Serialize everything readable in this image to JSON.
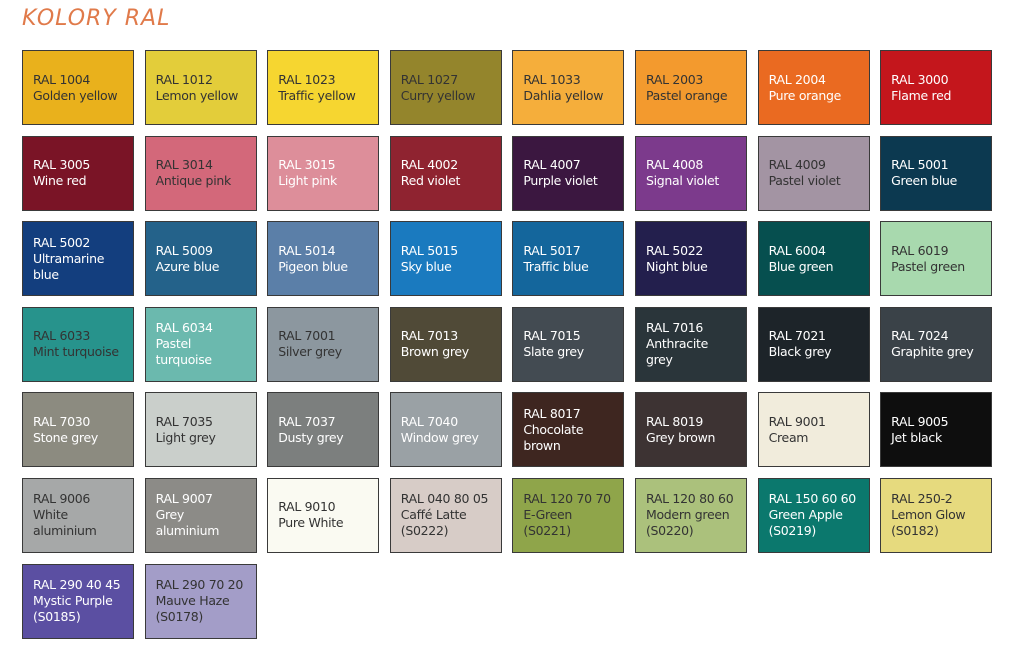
{
  "title": "KOLORY RAL",
  "swatches": [
    {
      "code": "RAL 1004",
      "name": "Golden yellow",
      "color": "#E9B11C",
      "text": "#333"
    },
    {
      "code": "RAL 1012",
      "name": "Lemon yellow",
      "color": "#E3CD3A",
      "text": "#333"
    },
    {
      "code": "RAL 1023",
      "name": "Traffic yellow",
      "color": "#F6D630",
      "text": "#333"
    },
    {
      "code": "RAL 1027",
      "name": "Curry yellow",
      "color": "#94852C",
      "text": "#333"
    },
    {
      "code": "RAL 1033",
      "name": "Dahlia yellow",
      "color": "#F5AE3B",
      "text": "#333"
    },
    {
      "code": "RAL 2003",
      "name": "Pastel orange",
      "color": "#F39A2E",
      "text": "#333"
    },
    {
      "code": "RAL 2004",
      "name": "Pure orange",
      "color": "#EA6A21",
      "text": "#fff"
    },
    {
      "code": "RAL 3000",
      "name": "Flame red",
      "color": "#C4161C",
      "text": "#fff"
    },
    {
      "code": "RAL 3005",
      "name": "Wine red",
      "color": "#7A1426",
      "text": "#fff"
    },
    {
      "code": "RAL 3014",
      "name": "Antique pink",
      "color": "#D3687A",
      "text": "#333"
    },
    {
      "code": "RAL 3015",
      "name": "Light pink",
      "color": "#DD8E9A",
      "text": "#fff"
    },
    {
      "code": "RAL 4002",
      "name": "Red violet",
      "color": "#8F2330",
      "text": "#fff"
    },
    {
      "code": "RAL 4007",
      "name": "Purple violet",
      "color": "#3B1740",
      "text": "#fff"
    },
    {
      "code": "RAL 4008",
      "name": "Signal violet",
      "color": "#7C3A8C",
      "text": "#fff"
    },
    {
      "code": "RAL 4009",
      "name": "Pastel violet",
      "color": "#A394A3",
      "text": "#333"
    },
    {
      "code": "RAL 5001",
      "name": "Green blue",
      "color": "#0C3950",
      "text": "#fff"
    },
    {
      "code": "RAL 5002",
      "name": "Ultramarine blue",
      "color": "#133E7E",
      "text": "#fff"
    },
    {
      "code": "RAL 5009",
      "name": "Azure blue",
      "color": "#24628A",
      "text": "#fff"
    },
    {
      "code": "RAL 5014",
      "name": "Pigeon blue",
      "color": "#5B7FA8",
      "text": "#fff"
    },
    {
      "code": "RAL 5015",
      "name": "Sky blue",
      "color": "#1A7ABF",
      "text": "#fff"
    },
    {
      "code": "RAL 5017",
      "name": "Traffic blue",
      "color": "#14669C",
      "text": "#fff"
    },
    {
      "code": "RAL 5022",
      "name": "Night blue",
      "color": "#231F4D",
      "text": "#fff"
    },
    {
      "code": "RAL 6004",
      "name": "Blue green",
      "color": "#064F4F",
      "text": "#fff"
    },
    {
      "code": "RAL 6019",
      "name": "Pastel green",
      "color": "#A8D9AE",
      "text": "#333"
    },
    {
      "code": "RAL 6033",
      "name": "Mint turquoise",
      "color": "#27938C",
      "text": "#333"
    },
    {
      "code": "RAL 6034",
      "name": "Pastel turquoise",
      "color": "#6BB9AE",
      "text": "#fff"
    },
    {
      "code": "RAL 7001",
      "name": "Silver grey",
      "color": "#8C979F",
      "text": "#333"
    },
    {
      "code": "RAL 7013",
      "name": "Brown grey",
      "color": "#504A37",
      "text": "#fff"
    },
    {
      "code": "RAL 7015",
      "name": "Slate grey",
      "color": "#434B52",
      "text": "#fff"
    },
    {
      "code": "RAL 7016",
      "name": "Anthracite grey",
      "color": "#2A353A",
      "text": "#fff"
    },
    {
      "code": "RAL 7021",
      "name": "Black grey",
      "color": "#1D2429",
      "text": "#fff"
    },
    {
      "code": "RAL 7024",
      "name": "Graphite grey",
      "color": "#3A4248",
      "text": "#fff"
    },
    {
      "code": "RAL 7030",
      "name": "Stone grey",
      "color": "#8C8B80",
      "text": "#fff"
    },
    {
      "code": "RAL 7035",
      "name": "Light grey",
      "color": "#CACFCB",
      "text": "#333"
    },
    {
      "code": "RAL 7037",
      "name": "Dusty grey",
      "color": "#7C7F7E",
      "text": "#fff"
    },
    {
      "code": "RAL 7040",
      "name": "Window grey",
      "color": "#9AA1A5",
      "text": "#fff"
    },
    {
      "code": "RAL 8017",
      "name": "Chocolate brown",
      "color": "#3E2620",
      "text": "#fff"
    },
    {
      "code": "RAL 8019",
      "name": "Grey brown",
      "color": "#3D3333",
      "text": "#fff"
    },
    {
      "code": "RAL 9001",
      "name": "Cream",
      "color": "#F1ECDC",
      "text": "#333"
    },
    {
      "code": "RAL 9005",
      "name": "Jet black",
      "color": "#0E0E0E",
      "text": "#fff"
    },
    {
      "code": "RAL 9006",
      "name": "White aluminium",
      "color": "#A6A8A8",
      "text": "#333"
    },
    {
      "code": "RAL 9007",
      "name": "Grey aluminium",
      "color": "#8C8B87",
      "text": "#fff"
    },
    {
      "code": "RAL 9010",
      "name": "Pure White",
      "color": "#FAFAF2",
      "text": "#333"
    },
    {
      "code": "RAL 040 80 05",
      "name": "Caffé Latte",
      "extra": "(S0222)",
      "color": "#D7CCC7",
      "text": "#333"
    },
    {
      "code": "RAL 120 70 70",
      "name": "E-Green",
      "extra": "(S0221)",
      "color": "#8FA54A",
      "text": "#333"
    },
    {
      "code": "RAL 120 80 60",
      "name": "Modern green",
      "extra": "(S0220)",
      "color": "#ABC17C",
      "text": "#333"
    },
    {
      "code": "RAL 150 60 60",
      "name": "Green Apple",
      "extra": "(S0219)",
      "color": "#0B786D",
      "text": "#fff"
    },
    {
      "code": "RAL 250-2",
      "name": "Lemon Glow",
      "extra": "(S0182)",
      "color": "#E6DA7E",
      "text": "#333"
    },
    {
      "code": "RAL 290 40 45",
      "name": "Mystic Purple",
      "extra": "(S0185)",
      "color": "#5B4FA2",
      "text": "#fff"
    },
    {
      "code": "RAL 290 70 20",
      "name": "Mauve Haze",
      "extra": "(S0178)",
      "color": "#A39DC8",
      "text": "#333"
    }
  ]
}
